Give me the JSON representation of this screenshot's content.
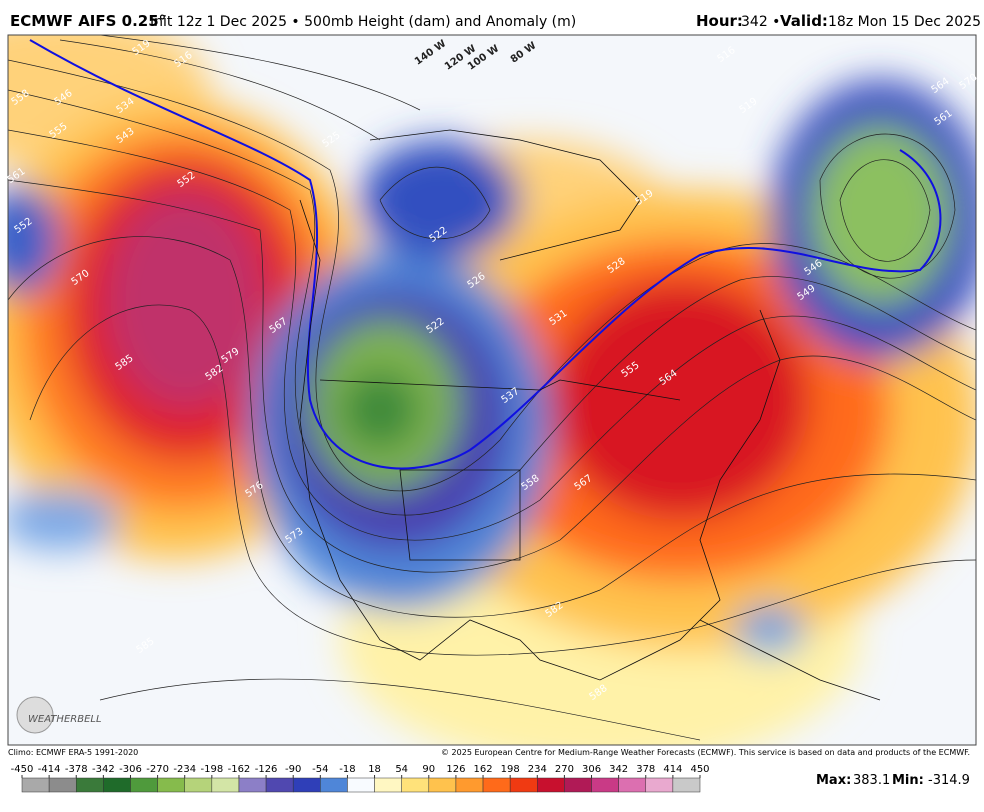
{
  "header": {
    "title": "ECMWF AIFS 0.25°",
    "subtitle": "Init 12z 1 Dec 2025 • 500mb Height (dam) and Anomaly (m)",
    "hour_label": "Hour:",
    "hour": "342 •",
    "valid_label": "Valid:",
    "valid": "18z Mon 15 Dec 2025"
  },
  "map": {
    "contour_labels": [
      "519",
      "516",
      "558",
      "546",
      "534",
      "543",
      "555",
      "561",
      "552",
      "552",
      "570",
      "585",
      "582",
      "579",
      "567",
      "576",
      "573",
      "585",
      "525",
      "522",
      "526",
      "522",
      "531",
      "537",
      "555",
      "564",
      "567",
      "558",
      "582",
      "588",
      "528",
      "519",
      "519",
      "516",
      "564",
      "561",
      "570",
      "546",
      "549",
      "140 W",
      "120 W",
      "100 W",
      "80 W"
    ],
    "logo": "WEATHERBELL"
  },
  "footer": {
    "climo": "Climo: ECMWF ERA-5 1991-2020",
    "copyright": "© 2025 European Centre for Medium-Range Weather Forecasts (ECMWF). This service is based on data and products of the ECMWF.",
    "max_label": "Max:",
    "max": "383.1",
    "min_label": "Min:",
    "min": "-314.9"
  },
  "colorbar": {
    "ticks": [
      -450,
      -414,
      -378,
      -342,
      -306,
      -270,
      -234,
      -198,
      -162,
      -126,
      -90,
      -54,
      -18,
      18,
      54,
      90,
      126,
      162,
      198,
      234,
      270,
      306,
      342,
      378,
      414,
      450
    ],
    "colors": [
      "#a9a9a9",
      "#8c8c8c",
      "#3a7a3a",
      "#1f6b2a",
      "#4f9a3c",
      "#86bb4c",
      "#b5d37a",
      "#d3e5a6",
      "#8c7fc7",
      "#5048b0",
      "#2f3fb8",
      "#4f86d8",
      "#f8fbff",
      "#fff7c2",
      "#ffe27a",
      "#ffc24d",
      "#ff9a2e",
      "#ff6a1a",
      "#f03a12",
      "#c8102e",
      "#b01a56",
      "#c93a86",
      "#dc6fb0",
      "#e9a9cf",
      "#c9c9c9"
    ]
  }
}
